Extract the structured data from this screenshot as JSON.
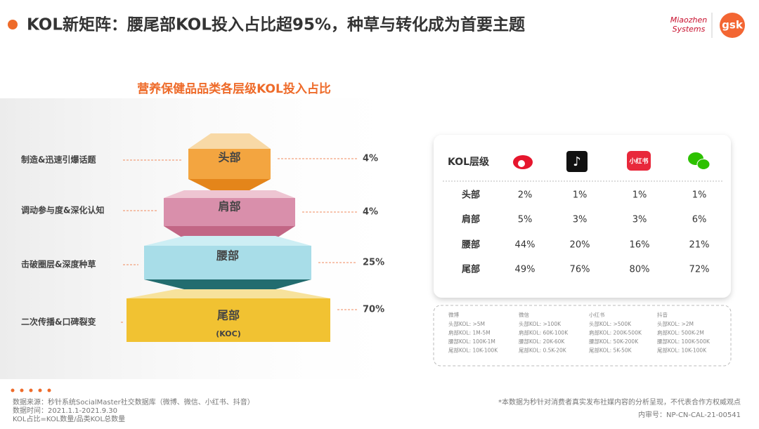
{
  "header": {
    "title": "KOL新矩阵：腰尾部KOL投入占比超95%，种草与转化成为首要主题",
    "logo_left": [
      "Miaozhen",
      "Systems"
    ],
    "logo_right": "gsk"
  },
  "pyramid": {
    "title": "营养保健品品类各层级KOL投入占比",
    "levels": [
      {
        "name": "头部",
        "purpose": "制造&迅速引爆话题",
        "share": "4%"
      },
      {
        "name": "肩部",
        "purpose": "调动参与度&深化认知",
        "share": "4%"
      },
      {
        "name": "腰部",
        "purpose": "击破圈层&深度种草",
        "share": "25%"
      },
      {
        "name": "尾部",
        "sub": "(KOC)",
        "purpose": "二次传播&口碑裂变",
        "share": "70%"
      }
    ]
  },
  "table": {
    "corner": "KOL层级",
    "platform_icon_text": "小红书",
    "rows": [
      [
        "头部",
        "2%",
        "1%",
        "1%",
        "1%"
      ],
      [
        "肩部",
        "5%",
        "3%",
        "3%",
        "6%"
      ],
      [
        "腰部",
        "44%",
        "20%",
        "16%",
        "21%"
      ],
      [
        "尾部",
        "49%",
        "76%",
        "80%",
        "72%"
      ]
    ]
  },
  "definitions": [
    {
      "platform": "微博",
      "items": [
        "头部KOL: >5M",
        "肩部KOL: 1M-5M",
        "腰部KOL: 100K-1M",
        "尾部KOL: 10K-100K"
      ]
    },
    {
      "platform": "微信",
      "items": [
        "头部KOL: >100K",
        "肩部KOL: 60K-100K",
        "腰部KOL: 20K-60K",
        "尾部KOL: 0.5K-20K"
      ]
    },
    {
      "platform": "小红书",
      "items": [
        "头部KOL: >500K",
        "肩部KOL: 200K-500K",
        "腰部KOL: 50K-200K",
        "尾部KOL: 5K-50K"
      ]
    },
    {
      "platform": "抖音",
      "items": [
        "头部KOL: >2M",
        "肩部KOL: 500K-2M",
        "腰部KOL: 100K-500K",
        "尾部KOL: 10K-100K"
      ]
    }
  ],
  "footer": {
    "notes": [
      "数据来源：秒针系统SocialMaster社交数据库（微博、微信、小红书、抖音）",
      "数据时间：2021.1.1-2021.9.30",
      "KOL占比=KOL数量/品类KOL总数量"
    ],
    "disclaimer": "*本数据为秒针对消费者真实发布社媒内容的分析呈现，不代表合作方权威观点",
    "code": "内审号：NP-CN-CAL-21-00541"
  }
}
